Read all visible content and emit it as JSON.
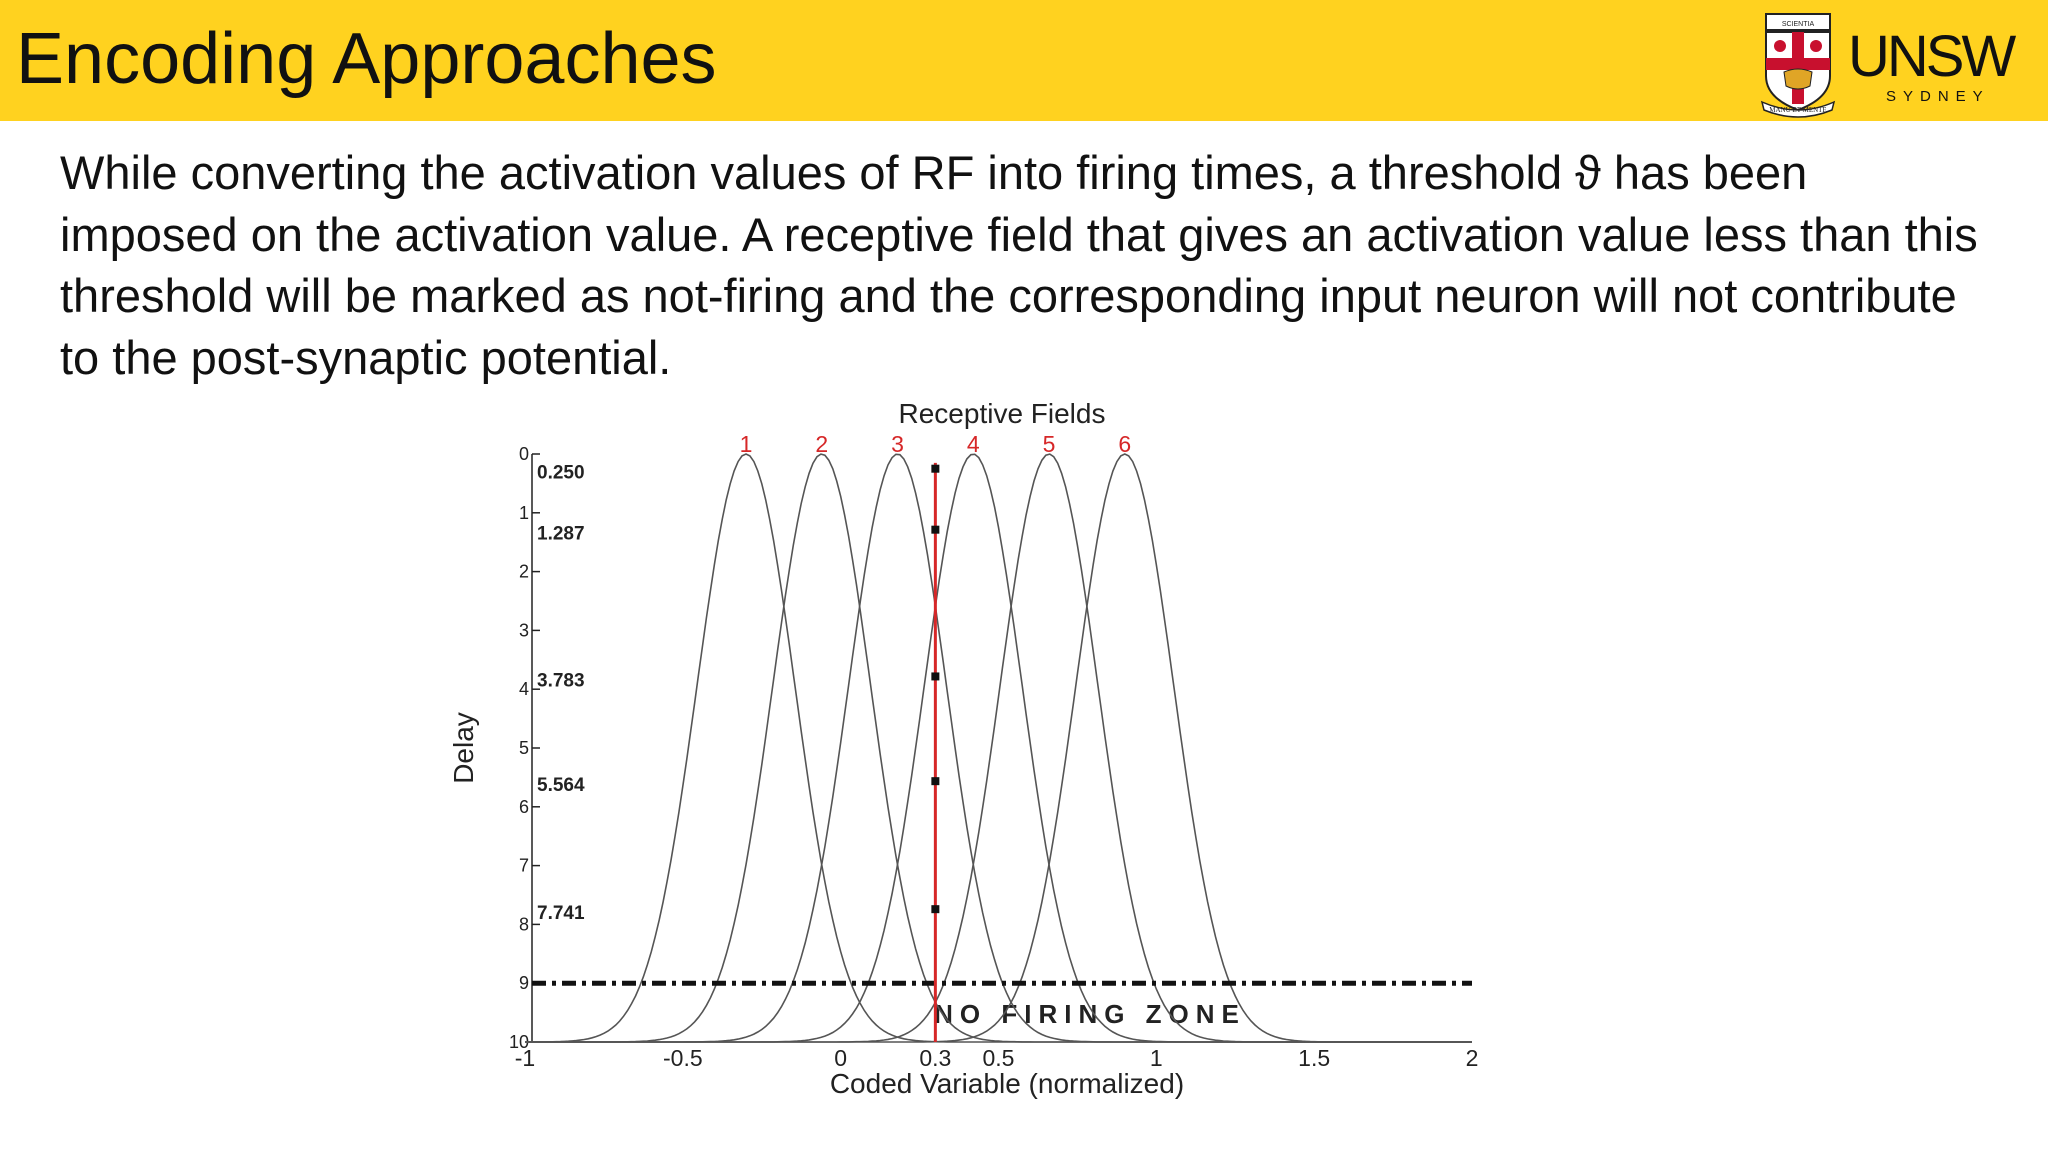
{
  "header": {
    "title": "Encoding Approaches",
    "background": "#FFD21F",
    "logo": {
      "wordmark": "UNSW",
      "sub": "SYDNEY",
      "motto": "MANU ET MENTE",
      "crest_banner": "SCIENTIA"
    }
  },
  "body": {
    "paragraph": "While converting the activation values of RF into firing times, a threshold ϑ has been imposed on the activation value. A receptive field that gives an activation value less than this threshold will be marked as not-firing and the corresponding input neuron will not contribute to the post-synaptic potential."
  },
  "chart_data": {
    "type": "line",
    "title": "Receptive Fields",
    "xlabel": "Coded Variable (normalized)",
    "ylabel": "Delay",
    "xlim": [
      -1,
      2
    ],
    "ylim": [
      10,
      0
    ],
    "x_ticks": [
      "-1",
      "-0.5",
      "0",
      "0.3",
      "0.5",
      "1",
      "1.5",
      "2"
    ],
    "y_ticks": [
      "0",
      "1",
      "2",
      "3",
      "4",
      "5",
      "6",
      "7",
      "8",
      "9",
      "10"
    ],
    "series": [
      {
        "name": "1",
        "center": -0.3
      },
      {
        "name": "2",
        "center": -0.06
      },
      {
        "name": "3",
        "center": 0.18
      },
      {
        "name": "4",
        "center": 0.42
      },
      {
        "name": "5",
        "center": 0.66
      },
      {
        "name": "6",
        "center": 0.9
      }
    ],
    "marker_x": 0.3,
    "delays": [
      0.25,
      1.287,
      3.783,
      5.564,
      7.741
    ],
    "delay_labels": [
      "0.250",
      "1.287",
      "3.783",
      "5.564",
      "7.741"
    ],
    "threshold_delay": 9,
    "zone_label": "NO FIRING ZONE",
    "colors": {
      "curve": "#555555",
      "marker_line": "#D62728",
      "labels": "#D62728"
    },
    "grid": false
  }
}
